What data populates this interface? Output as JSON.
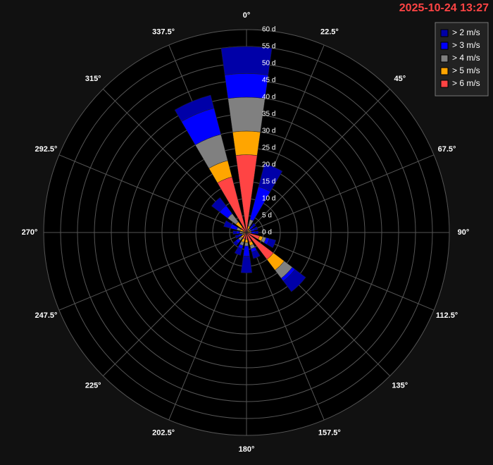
{
  "chart_data": {
    "type": "windrose",
    "title": "2025-10-24 13:27",
    "categories": [
      "0°",
      "22.5°",
      "45°",
      "67.5°",
      "90°",
      "112.5°",
      "135°",
      "157.5°",
      "180°",
      "202.5°",
      "225°",
      "247.5°",
      "270°",
      "292.5°",
      "315°",
      "337.5°"
    ],
    "series": [
      {
        "name": "> 2 m/s",
        "color": "#0000a8",
        "values": [
          8,
          7,
          1,
          1,
          1,
          2,
          4,
          2,
          5,
          2,
          1,
          1,
          1,
          2,
          3,
          4
        ]
      },
      {
        "name": "> 3 m/s",
        "color": "#0000ff",
        "values": [
          7,
          10,
          1,
          1,
          1,
          1,
          1,
          1,
          3,
          1,
          1,
          1,
          1,
          2,
          3,
          8
        ]
      },
      {
        "name": "> 4 m/s",
        "color": "#808080",
        "values": [
          10,
          2,
          0.5,
          0.5,
          0.5,
          1,
          3,
          1,
          1,
          1,
          1,
          0.5,
          1,
          1,
          3,
          8
        ]
      },
      {
        "name": "> 5 m/s",
        "color": "#ffa500",
        "values": [
          7,
          1,
          0.5,
          0.5,
          0.5,
          1,
          4,
          1,
          1,
          1,
          1,
          0.5,
          0.5,
          1,
          2,
          5
        ]
      },
      {
        "name": "> 6 m/s",
        "color": "#ff4444",
        "values": [
          23,
          1,
          0.5,
          0.5,
          0.5,
          4,
          10,
          3,
          2,
          2,
          1,
          0.5,
          0.5,
          1,
          2,
          17
        ]
      }
    ],
    "ylim": [
      0,
      60
    ],
    "yticks": [
      {
        "value": 0,
        "label": "0 d"
      },
      {
        "value": 5,
        "label": "5 d"
      },
      {
        "value": 10,
        "label": "10 d"
      },
      {
        "value": 15,
        "label": "15 d"
      },
      {
        "value": 20,
        "label": "20 d"
      },
      {
        "value": 25,
        "label": "25 d"
      },
      {
        "value": 30,
        "label": "30 d"
      },
      {
        "value": 35,
        "label": "35 d"
      },
      {
        "value": 40,
        "label": "40 d"
      },
      {
        "value": 45,
        "label": "45 d"
      },
      {
        "value": 50,
        "label": "50 d"
      },
      {
        "value": 55,
        "label": "55 d"
      },
      {
        "value": 60,
        "label": "60 d"
      }
    ],
    "legend": "top-right"
  }
}
